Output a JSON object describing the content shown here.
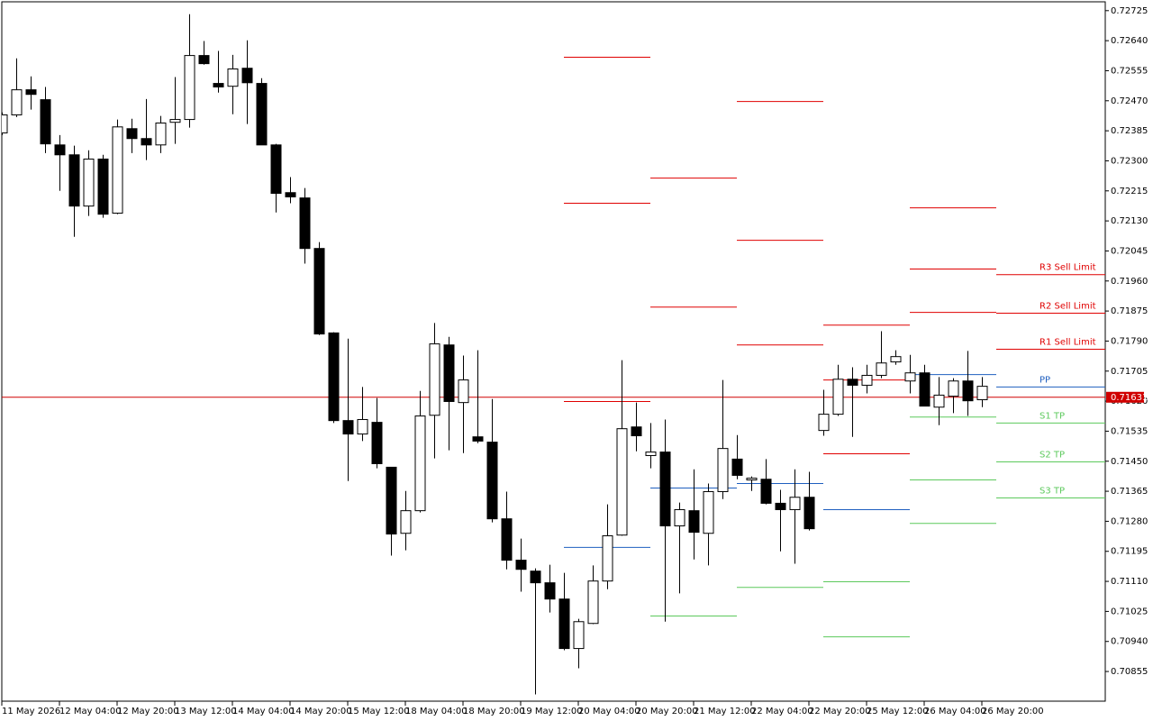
{
  "chart_data": {
    "type": "candlestick",
    "ylim": [
      0.70771,
      0.7275
    ],
    "yticks": [
      0.72725,
      {
        "value": 0.7264,
        "label": "0.72640"
      },
      0.72555,
      {
        "value": 0.7247,
        "label": "0.72470"
      },
      0.72385,
      {
        "value": 0.723,
        "label": "0.72300"
      },
      0.72215,
      {
        "value": 0.7213,
        "label": "0.72130"
      },
      0.72045,
      {
        "value": 0.7196,
        "label": "0.71960"
      },
      0.71875,
      {
        "value": 0.7179,
        "label": "0.71790"
      },
      0.71705,
      {
        "value": 0.7162,
        "label": "0.71620"
      },
      0.71535,
      {
        "value": 0.7145,
        "label": "0.71450"
      },
      0.71365,
      {
        "value": 0.7128,
        "label": "0.71280"
      },
      0.71195,
      {
        "value": 0.7111,
        "label": "0.71110"
      },
      0.71025,
      {
        "value": 0.7094,
        "label": "0.70940"
      },
      0.70855
    ],
    "time_labels": [
      "11 May 2026",
      "12 May 04:00",
      "12 May 20:00",
      "13 May 12:00",
      "14 May 04:00",
      "14 May 20:00",
      "15 May 12:00",
      "18 May 04:00",
      "18 May 20:00",
      "19 May 12:00",
      "20 May 04:00",
      "20 May 20:00",
      "21 May 12:00",
      "22 May 04:00",
      "22 May 20:00",
      "25 May 12:00",
      "26 May 04:00",
      "26 May 20:00"
    ],
    "candles": {
      "open": [
        0.72379,
        0.7243,
        0.72501,
        0.72473,
        0.72345,
        0.72317,
        0.72172,
        0.72305,
        0.72152,
        0.72391,
        0.72363,
        0.72345,
        0.72409,
        0.72417,
        0.72598,
        0.72519,
        0.72511,
        0.72562,
        0.72519,
        0.72345,
        0.7221,
        0.72195,
        0.72052,
        0.71813,
        0.71565,
        0.71527,
        0.7156,
        0.71433,
        0.71246,
        0.7131,
        0.7158,
        0.71779,
        0.71616,
        0.71519,
        0.71504,
        0.71287,
        0.7117,
        0.71139,
        0.71106,
        0.7106,
        0.7092,
        0.70991,
        0.71111,
        0.71241,
        0.71547,
        0.71466,
        0.71476,
        0.71267,
        0.7131,
        0.71246,
        0.71364,
        0.71456,
        0.71397,
        0.71399,
        0.71331,
        0.71313,
        0.71348,
        0.71537,
        0.71583,
        0.71682,
        0.71665,
        0.71693,
        0.71731,
        0.71677,
        0.717,
        0.71603,
        0.71634,
        0.71677,
        0.71624
      ],
      "high": [
        0.72437,
        0.7259,
        0.72539,
        0.72509,
        0.72373,
        0.72343,
        0.7233,
        0.72317,
        0.72417,
        0.72419,
        0.72475,
        0.72427,
        0.72537,
        0.72715,
        0.72639,
        0.72611,
        0.726,
        0.72641,
        0.72534,
        0.72348,
        0.72254,
        0.72223,
        0.7207,
        0.71815,
        0.71797,
        0.7166,
        0.71629,
        0.71433,
        0.71366,
        0.71649,
        0.71841,
        0.71802,
        0.71749,
        0.71764,
        0.71626,
        0.71364,
        0.71231,
        0.71147,
        0.71157,
        0.71134,
        0.71004,
        0.71155,
        0.71328,
        0.71736,
        0.71616,
        0.71558,
        0.71568,
        0.71333,
        0.71427,
        0.71387,
        0.7168,
        0.71524,
        0.71407,
        0.71456,
        0.71369,
        0.71427,
        0.7142,
        0.71652,
        0.71723,
        0.71716,
        0.71723,
        0.71818,
        0.71764,
        0.71751,
        0.71723,
        0.71688,
        0.71685,
        0.71762,
        0.71688
      ],
      "low": [
        0.72373,
        0.72424,
        0.72445,
        0.72322,
        0.72215,
        0.72085,
        0.72144,
        0.72139,
        0.72149,
        0.72322,
        0.72302,
        0.72322,
        0.72348,
        0.72394,
        0.72572,
        0.72493,
        0.72432,
        0.72404,
        0.72345,
        0.72154,
        0.7218,
        0.72009,
        0.71807,
        0.71558,
        0.71394,
        0.71507,
        0.7143,
        0.71183,
        0.71198,
        0.71305,
        0.71458,
        0.71481,
        0.71473,
        0.71501,
        0.71277,
        0.71144,
        0.71081,
        0.7079,
        0.71022,
        0.70915,
        0.70864,
        0.70989,
        0.71088,
        0.71239,
        0.71478,
        0.7143,
        0.70996,
        0.71076,
        0.71172,
        0.71155,
        0.71343,
        0.71399,
        0.71366,
        0.71328,
        0.71195,
        0.7116,
        0.71254,
        0.71522,
        0.71578,
        0.71519,
        0.71642,
        0.71685,
        0.71723,
        0.71642,
        0.71606,
        0.71552,
        0.71586,
        0.71578,
        0.71603
      ],
      "close": [
        0.7243,
        0.72501,
        0.72488,
        0.72348,
        0.72317,
        0.72172,
        0.72305,
        0.72149,
        0.72396,
        0.72363,
        0.72345,
        0.72407,
        0.72417,
        0.72598,
        0.72575,
        0.72509,
        0.7256,
        0.72521,
        0.72345,
        0.72208,
        0.72198,
        0.72052,
        0.7181,
        0.71565,
        0.71527,
        0.71568,
        0.71443,
        0.71244,
        0.7131,
        0.71578,
        0.71782,
        0.71619,
        0.7168,
        0.71507,
        0.71287,
        0.7117,
        0.71144,
        0.71106,
        0.7106,
        0.7092,
        0.70996,
        0.71111,
        0.71239,
        0.71542,
        0.71522,
        0.71476,
        0.71267,
        0.71313,
        0.71249,
        0.71364,
        0.71486,
        0.7141,
        0.71402,
        0.71331,
        0.71313,
        0.71348,
        0.71259,
        0.71583,
        0.71682,
        0.71665,
        0.71693,
        0.71728,
        0.71746,
        0.717,
        0.71606,
        0.71637,
        0.71677,
        0.71621,
        0.71662
      ]
    },
    "bull_color": "#ffffff",
    "bear_color": "#000000",
    "levels": [
      {
        "name": "R3 Sell Limit",
        "color": "#e00000",
        "values": [
          0.72593,
          null,
          0.72468,
          0.71835,
          0.72167,
          0.71978
        ]
      },
      {
        "name": "R2 Sell Limit",
        "color": "#e00000",
        "values": [
          0.7218,
          0.72251,
          0.72075,
          0.7168,
          0.71994,
          0.71869
        ]
      },
      {
        "name": "R1 Sell Limit",
        "color": "#e00000",
        "values": [
          0.71619,
          0.71886,
          0.71779,
          0.71471,
          0.71871,
          0.71767
        ]
      },
      {
        "name": "PP",
        "color": "#1f5fbf",
        "values": [
          0.71206,
          0.71374,
          0.71387,
          0.71313,
          0.71695,
          0.7166
        ]
      },
      {
        "name": "S1 TP",
        "color": "#5cc95c",
        "values": [
          null,
          0.71012,
          0.71093,
          0.71109,
          0.71575,
          0.71558
        ]
      },
      {
        "name": "S2 TP",
        "color": "#5cc95c",
        "values": [
          null,
          null,
          null,
          0.70953,
          0.71397,
          0.71448
        ]
      },
      {
        "name": "S3 TP",
        "color": "#5cc95c",
        "values": [
          null,
          null,
          null,
          null,
          0.71274,
          0.71346
        ]
      }
    ],
    "current_price": 0.71631,
    "current_price_color": "#d00000"
  }
}
